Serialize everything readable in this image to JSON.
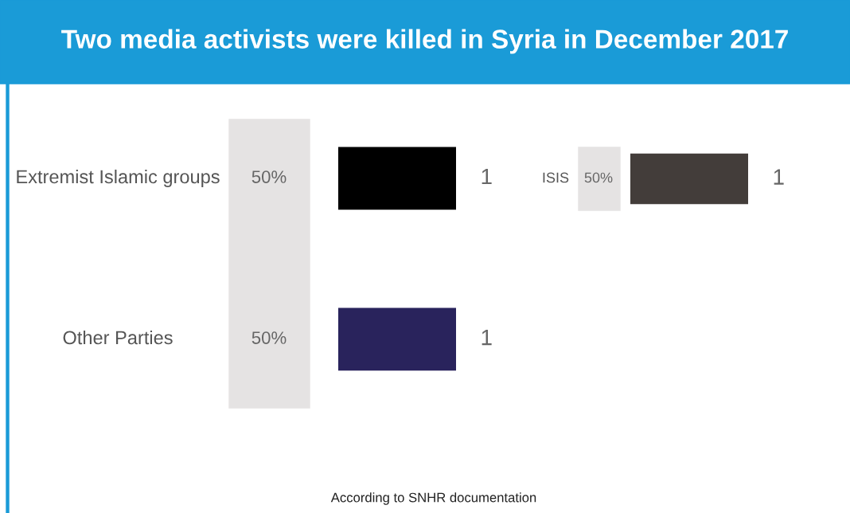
{
  "chart_data": [
    {
      "type": "bar",
      "orientation": "horizontal",
      "title": "Two media activists were killed in Syria in December 2017",
      "categories": [
        "Extremist Islamic groups",
        "Other Parties"
      ],
      "values": [
        1,
        1
      ],
      "colors": [
        "#000000",
        "#29235c"
      ],
      "data_labels": true,
      "annotations": [
        "50%",
        "50%",
        "According to SNHR documentation"
      ]
    },
    {
      "type": "bar",
      "orientation": "horizontal",
      "categories": [
        "ISIS"
      ],
      "values": [
        1
      ],
      "colors": [
        "#433d3a"
      ],
      "data_labels": true,
      "annotations": [
        "50%"
      ]
    }
  ]
}
